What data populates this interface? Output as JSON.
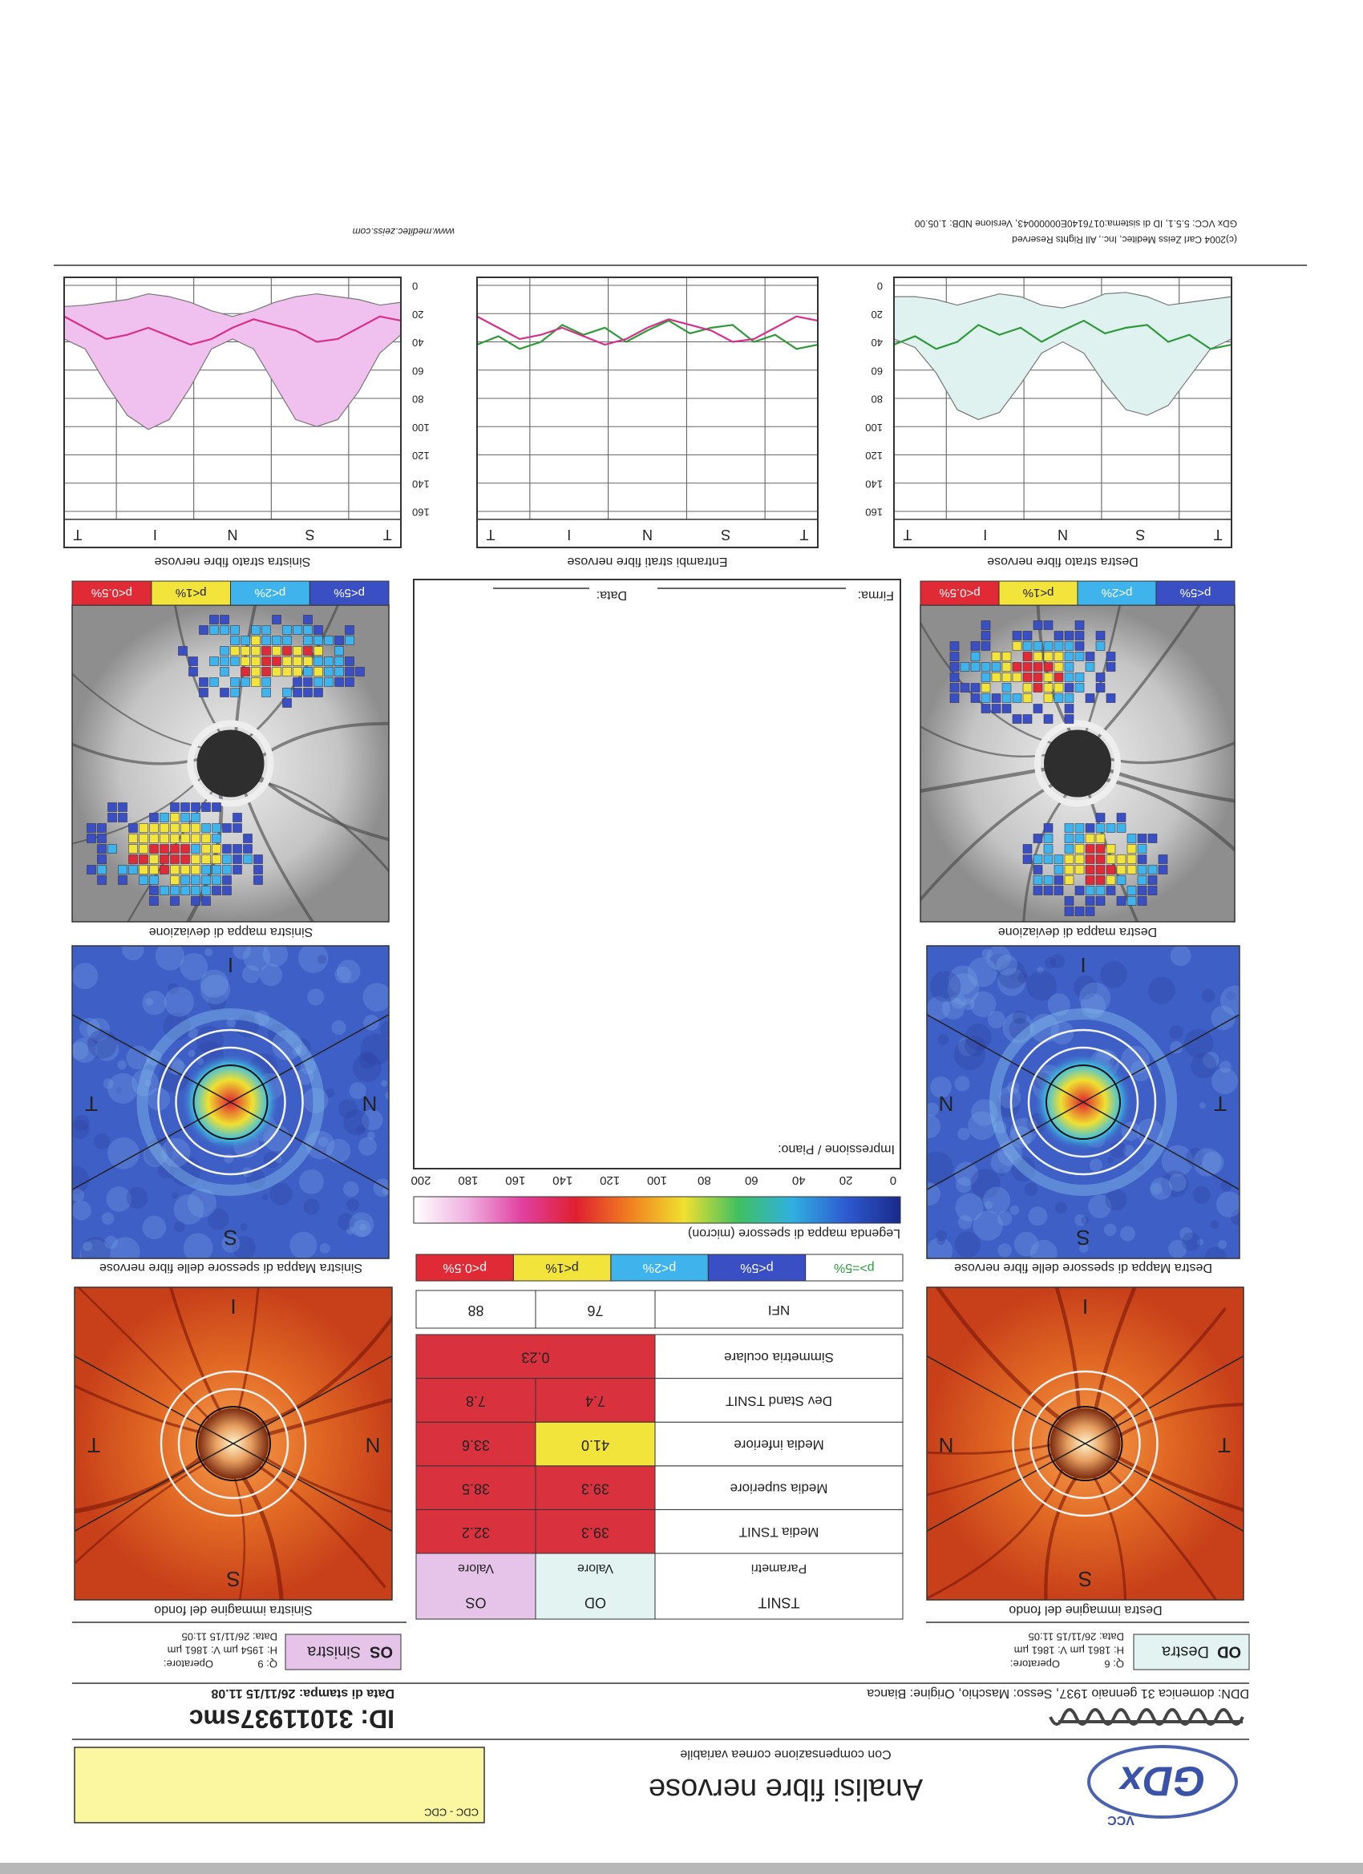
{
  "header": {
    "logo": "GDx",
    "logo_sub": "VCC",
    "title": "Analisi fibre nervose",
    "subtitle": "Con compensazione cornea variabile",
    "box_label": "CDC - CDC"
  },
  "patient": {
    "id": "ID: 31011937smc",
    "ddn": "DDN: domenica 31 gennaio 1937, Sesso: Maschio, Origine: Bianca",
    "print_date": "Data di stampa: 26/11/15 11.08"
  },
  "eyes": [
    {
      "code": "OD",
      "name": "Destra",
      "q": "Q: 6",
      "operator": "Operatore:",
      "hv": "H: 1861 µm   V: 1861 µm",
      "date": "Data: 26/11/15 11:05",
      "color": "#e2f3f1"
    },
    {
      "code": "OS",
      "name": "Sinistra",
      "q": "Q: 9",
      "operator": "Operatore:",
      "hv": "H: 1954 µm   V: 1861 µm",
      "date": "Data: 26/11/15 11:05",
      "color": "#e6c4ea"
    }
  ],
  "panels": {
    "fundus": [
      "Destra immagine del fondo",
      "Sinistra immagine del fondo"
    ],
    "thickness": [
      "Destra Mappa di spessore delle fibre nervose",
      "Sinistra Mappa di spessore delle fibre nervose"
    ],
    "deviation": [
      "Destra mappa di deviazione",
      "Sinistra mappa di deviazione"
    ],
    "letters": {
      "superior": "S",
      "inferior": "I",
      "temporal": "T",
      "nasal": "N"
    }
  },
  "table": {
    "header": [
      "TSNIT",
      "OD",
      "OS"
    ],
    "subheader": [
      "Parametri",
      "Valore",
      "Valore"
    ],
    "rows": [
      {
        "label": "Media TSNIT",
        "values": [
          "39.3",
          "32.2"
        ],
        "colors": [
          "#d9323e",
          "#d9323e"
        ]
      },
      {
        "label": "Media superiore",
        "values": [
          "39.3",
          "38.5"
        ],
        "colors": [
          "#d9323e",
          "#d9323e"
        ]
      },
      {
        "label": "Media inferiore",
        "values": [
          "41.0",
          "33.6"
        ],
        "colors": [
          "#f2e43a",
          "#d9323e"
        ]
      },
      {
        "label": "Dev Stand TSNIT",
        "values": [
          "7.4",
          "7.8"
        ],
        "colors": [
          "#d9323e",
          "#d9323e"
        ]
      },
      {
        "label": "Simmetria oculare",
        "values": [
          "0.23"
        ],
        "colors": [
          "#d9323e"
        ]
      },
      {
        "label": "NFI",
        "values": [
          "76",
          "88"
        ],
        "colors": [
          "#ffffff",
          "#ffffff"
        ]
      }
    ]
  },
  "significance": [
    {
      "label": "p>=5%",
      "color": "#ffffff",
      "text_color": "#2a9a3a"
    },
    {
      "label": "p<5%",
      "color": "#3b4fc4",
      "text_color": "#ffffff"
    },
    {
      "label": "p<2%",
      "color": "#3fb4ec",
      "text_color": "#ffffff"
    },
    {
      "label": "p<1%",
      "color": "#f2e43a",
      "text_color": "#222222"
    },
    {
      "label": "p<0.5%",
      "color": "#e02a36",
      "text_color": "#ffffff"
    }
  ],
  "thickness_legend": {
    "title": "Legenda mappa di spessore (micron)",
    "range": [
      0,
      200
    ],
    "ticks": [
      0,
      20,
      40,
      60,
      80,
      100,
      120,
      140,
      160,
      180,
      200
    ],
    "colors": [
      "#1a2a8a",
      "#2e5ad0",
      "#30b0e0",
      "#40c060",
      "#f0e030",
      "#f08020",
      "#e02030",
      "#e040a0",
      "#f0b0e0",
      "#ffffff"
    ]
  },
  "impression": {
    "label": "Impressione / Piano:",
    "signature": "Firma:",
    "date": "Data:"
  },
  "graphs": [
    {
      "type": "line",
      "title": "Destra strato fibre nervose",
      "xlabels": [
        "T",
        "S",
        "N",
        "I",
        "T"
      ],
      "ylim": [
        0,
        160
      ],
      "yticks": [
        0,
        20,
        40,
        60,
        80,
        100,
        120,
        140,
        160
      ],
      "tick_labels": "right",
      "band": {
        "color": "#dff2f0",
        "lower": [
          8,
          10,
          12,
          14,
          8,
          5,
          6,
          12,
          16,
          14,
          8,
          6,
          10,
          14,
          10,
          8,
          8
        ],
        "upper": [
          38,
          45,
          65,
          85,
          92,
          88,
          70,
          48,
          40,
          48,
          70,
          90,
          95,
          88,
          62,
          44,
          38
        ]
      },
      "series": [
        {
          "color": "#2e9a3a",
          "values": [
            42,
            45,
            35,
            40,
            28,
            30,
            34,
            25,
            32,
            40,
            30,
            35,
            28,
            40,
            45,
            36,
            42
          ]
        }
      ]
    },
    {
      "type": "line",
      "title": "Entrambi strati fibre nervose",
      "xlabels": [
        "T",
        "S",
        "N",
        "I",
        "T"
      ],
      "ylim": [
        0,
        160
      ],
      "yticks": [
        0,
        20,
        40,
        60,
        80,
        100,
        120,
        140,
        160
      ],
      "tick_labels": "none",
      "series": [
        {
          "color": "#2e9a3a",
          "values": [
            42,
            45,
            35,
            40,
            28,
            30,
            34,
            25,
            32,
            40,
            30,
            35,
            28,
            40,
            45,
            36,
            42
          ]
        },
        {
          "color": "#d6308a",
          "values": [
            25,
            22,
            30,
            38,
            40,
            32,
            28,
            24,
            30,
            38,
            42,
            36,
            30,
            35,
            38,
            30,
            22
          ]
        }
      ]
    },
    {
      "type": "line",
      "title": "Sinistra strato fibre nervose",
      "xlabels": [
        "T",
        "S",
        "N",
        "I",
        "T"
      ],
      "ylim": [
        0,
        160
      ],
      "yticks": [
        0,
        20,
        40,
        60,
        80,
        100,
        120,
        140,
        160
      ],
      "tick_labels": "left",
      "band": {
        "color": "#f0c0ee",
        "lower": [
          12,
          14,
          10,
          8,
          6,
          8,
          12,
          18,
          22,
          18,
          12,
          8,
          6,
          10,
          12,
          14,
          15
        ],
        "upper": [
          35,
          48,
          75,
          95,
          100,
          95,
          70,
          45,
          38,
          45,
          72,
          95,
          102,
          92,
          70,
          45,
          38
        ]
      },
      "series": [
        {
          "color": "#d6308a",
          "values": [
            25,
            22,
            30,
            38,
            40,
            32,
            28,
            24,
            30,
            38,
            42,
            36,
            30,
            35,
            38,
            30,
            22
          ]
        }
      ]
    }
  ],
  "footer": {
    "copyright": "(c)2004 Carl Zeiss Meditec, Inc., All Rights Reserved",
    "version": "GDx VCC: 5.5.1, ID di sistema:0176140E00000043, Versione NDB: 1.05.00",
    "url": "www.meditec.zeiss.com"
  }
}
